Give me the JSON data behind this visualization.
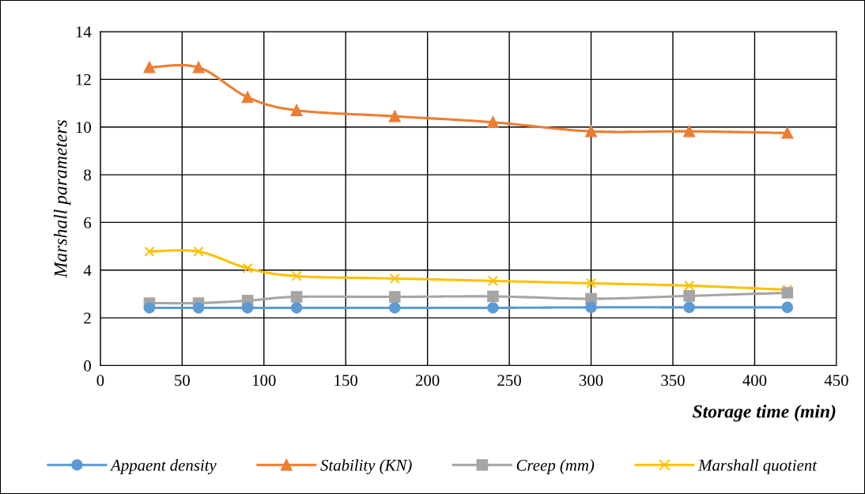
{
  "chart_data": {
    "type": "line",
    "xlabel": "Storage time (min)",
    "ylabel": "Marshall parameters",
    "x": [
      30,
      60,
      90,
      120,
      180,
      240,
      300,
      360,
      420
    ],
    "series": [
      {
        "name": "Appaent density",
        "color": "#5b9bd5",
        "marker": "circle",
        "values": [
          2.42,
          2.42,
          2.42,
          2.42,
          2.42,
          2.42,
          2.44,
          2.44,
          2.44
        ]
      },
      {
        "name": "Stability (KN)",
        "color": "#ed7d31",
        "marker": "triangle",
        "values": [
          12.5,
          12.5,
          11.25,
          10.7,
          10.45,
          10.2,
          9.82,
          9.82,
          9.75
        ]
      },
      {
        "name": "Creep (mm)",
        "color": "#a5a5a5",
        "marker": "square",
        "values": [
          2.62,
          2.62,
          2.72,
          2.88,
          2.88,
          2.9,
          2.8,
          2.92,
          3.05
        ]
      },
      {
        "name": "Marshall quotient",
        "color": "#ffc000",
        "marker": "cross",
        "values": [
          4.78,
          4.78,
          4.08,
          3.75,
          3.65,
          3.55,
          3.45,
          3.35,
          3.18
        ]
      }
    ],
    "xlim": [
      0,
      450
    ],
    "xticks": [
      0,
      50,
      100,
      150,
      200,
      250,
      300,
      350,
      400,
      450
    ],
    "ylim": [
      0,
      14
    ],
    "yticks": [
      0,
      2,
      4,
      6,
      8,
      10,
      12,
      14
    ],
    "grid": true,
    "legend": "bottom",
    "line_style": "solid"
  }
}
